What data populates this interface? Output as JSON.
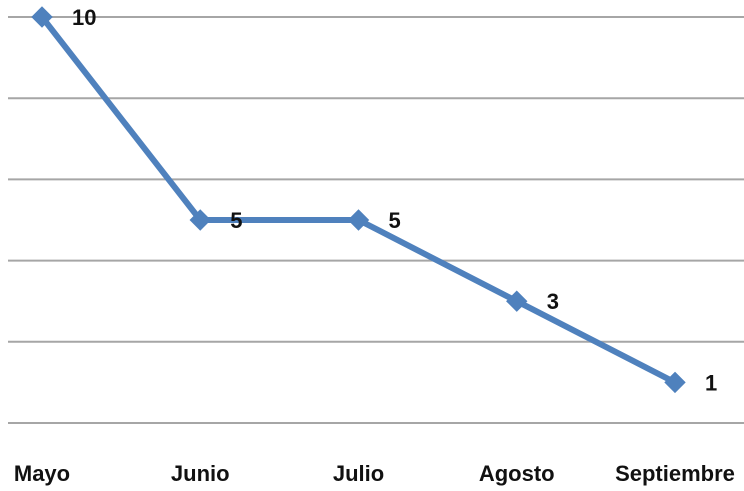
{
  "chart_data": {
    "type": "line",
    "categories": [
      "Mayo",
      "Junio",
      "Julio",
      "Agosto",
      "Septiembre"
    ],
    "series": [
      {
        "values": [
          10,
          5,
          5,
          3,
          1
        ],
        "color": "#4f81bd",
        "marker": "diamond"
      }
    ],
    "data_labels": [
      "10",
      "5",
      "5",
      "3",
      "1"
    ],
    "ylim": [
      0,
      10
    ],
    "y_gridlines": [
      0,
      2,
      4,
      6,
      8,
      10
    ],
    "grid": true,
    "legend": "none"
  }
}
